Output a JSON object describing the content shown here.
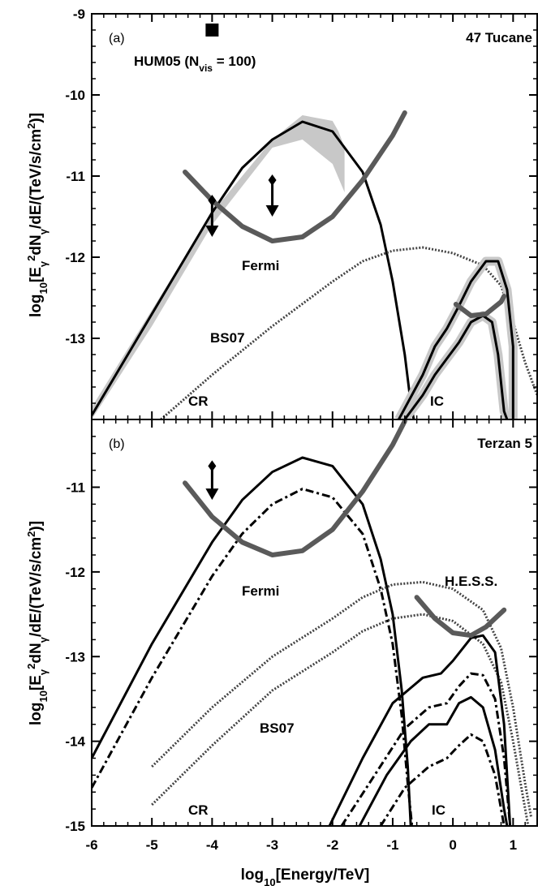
{
  "chart_data": {
    "type": "line",
    "shared_x_axis": {
      "label": "log10[Energy/TeV]",
      "ticks": [
        "-6",
        "-5",
        "-4",
        "-3",
        "-2",
        "-1",
        "0",
        "1"
      ],
      "range": [
        -6,
        1.4
      ]
    },
    "y_axis_label": "log10[Eγ²dNγ/dE/(TeV/s/cm²)]",
    "panels": [
      {
        "panel_label": "(a)",
        "title": "47 Tucane",
        "ylim": [
          -14,
          -9
        ],
        "yticks": [
          "-9",
          "-10",
          "-11",
          "-12",
          "-13"
        ],
        "annotations": {
          "hum05": "HUM05 (N",
          "hum05_sub": "vis",
          "hum05_tail": " = 100)",
          "fermi": "Fermi",
          "bs07": "BS07",
          "cr": "CR",
          "ic": "IC"
        },
        "hum05_point": {
          "x": -4.0,
          "y": -9.2
        },
        "series": [
          {
            "style": "band",
            "color": "#c8c8c8",
            "points": [
              [
                -6,
                -13.85
              ],
              [
                -5,
                -12.65
              ],
              [
                -4,
                -11.45
              ],
              [
                -3,
                -10.55
              ],
              [
                -2.5,
                -10.25
              ],
              [
                -2,
                -10.32
              ],
              [
                -1.9,
                -10.45
              ],
              [
                -1.8,
                -10.65
              ],
              [
                -1.8,
                -11.2
              ],
              [
                -2,
                -10.85
              ],
              [
                -2.5,
                -10.55
              ],
              [
                -3,
                -10.65
              ],
              [
                -4,
                -11.6
              ],
              [
                -5,
                -12.85
              ],
              [
                -6,
                -14.0
              ]
            ]
          },
          {
            "style": "solid",
            "points": [
              [
                -6,
                -13.95
              ],
              [
                -5,
                -12.7
              ],
              [
                -4,
                -11.45
              ],
              [
                -3.5,
                -10.9
              ],
              [
                -3,
                -10.55
              ],
              [
                -2.5,
                -10.33
              ],
              [
                -2,
                -10.45
              ],
              [
                -1.5,
                -10.95
              ],
              [
                -1.2,
                -11.6
              ],
              [
                -1,
                -12.3
              ],
              [
                -0.8,
                -13.2
              ],
              [
                -0.7,
                -13.8
              ],
              [
                -0.65,
                -14.0
              ]
            ]
          },
          {
            "style": "dotted",
            "points": [
              [
                -4.85,
                -14.0
              ],
              [
                -4,
                -13.45
              ],
              [
                -3,
                -12.85
              ],
              [
                -2,
                -12.3
              ],
              [
                -1.5,
                -12.05
              ],
              [
                -1,
                -11.92
              ],
              [
                -0.5,
                -11.88
              ],
              [
                0,
                -11.95
              ],
              [
                0.5,
                -12.1
              ],
              [
                0.8,
                -12.35
              ],
              [
                1.0,
                -12.8
              ],
              [
                1.2,
                -13.3
              ],
              [
                1.4,
                -13.7
              ]
            ]
          },
          {
            "style": "solid",
            "points": [
              [
                -0.8,
                -14.0
              ],
              [
                -0.5,
                -13.7
              ],
              [
                -0.3,
                -13.45
              ],
              [
                -0.1,
                -13.25
              ],
              [
                0.1,
                -13.05
              ],
              [
                0.3,
                -12.8
              ],
              [
                0.5,
                -12.72
              ],
              [
                0.65,
                -12.8
              ],
              [
                0.75,
                -13.2
              ],
              [
                0.85,
                -13.9
              ],
              [
                0.9,
                -14.0
              ]
            ]
          },
          {
            "style": "solid",
            "points": [
              [
                -0.9,
                -14.0
              ],
              [
                -0.5,
                -13.45
              ],
              [
                -0.3,
                -13.1
              ],
              [
                -0.1,
                -12.88
              ],
              [
                0.1,
                -12.6
              ],
              [
                0.3,
                -12.3
              ],
              [
                0.55,
                -12.05
              ],
              [
                0.75,
                -12.05
              ],
              [
                0.9,
                -12.4
              ],
              [
                1.0,
                -13.1
              ],
              [
                1.0,
                -14.0
              ]
            ]
          },
          {
            "style": "thick-gray",
            "points": [
              [
                -4.45,
                -10.95
              ],
              [
                -4,
                -11.3
              ],
              [
                -3.5,
                -11.62
              ],
              [
                -3,
                -11.8
              ],
              [
                -2.5,
                -11.75
              ],
              [
                -2,
                -11.5
              ],
              [
                -1.5,
                -11.05
              ],
              [
                -1,
                -10.5
              ],
              [
                -0.8,
                -10.22
              ]
            ]
          },
          {
            "style": "thick-gray",
            "points": [
              [
                0.05,
                -12.58
              ],
              [
                0.3,
                -12.72
              ],
              [
                0.55,
                -12.7
              ],
              [
                0.8,
                -12.55
              ],
              [
                0.85,
                -12.48
              ]
            ]
          }
        ],
        "upper_limits": [
          {
            "x": -4.0,
            "y_top": -11.3,
            "y_bottom": -11.75
          },
          {
            "x": -3.0,
            "y_top": -11.05,
            "y_bottom": -11.5
          }
        ]
      },
      {
        "panel_label": "(b)",
        "title": "Terzan 5",
        "ylim": [
          -15,
          -10.2
        ],
        "yticks": [
          "-11",
          "-12",
          "-13",
          "-14",
          "-15"
        ],
        "annotations": {
          "fermi": "Fermi",
          "hess": "H.E.S.S.",
          "bs07": "BS07",
          "cr": "CR",
          "ic": "IC"
        },
        "series": [
          {
            "style": "solid",
            "points": [
              [
                -6,
                -14.2
              ],
              [
                -5,
                -12.85
              ],
              [
                -4,
                -11.65
              ],
              [
                -3.5,
                -11.15
              ],
              [
                -3,
                -10.82
              ],
              [
                -2.5,
                -10.65
              ],
              [
                -2,
                -10.75
              ],
              [
                -1.5,
                -11.2
              ],
              [
                -1.2,
                -11.85
              ],
              [
                -1,
                -12.5
              ],
              [
                -0.85,
                -13.4
              ],
              [
                -0.75,
                -14.3
              ],
              [
                -0.7,
                -15.0
              ]
            ]
          },
          {
            "style": "dashdot",
            "points": [
              [
                -6,
                -14.55
              ],
              [
                -5,
                -13.25
              ],
              [
                -4,
                -12.05
              ],
              [
                -3.5,
                -11.55
              ],
              [
                -3,
                -11.2
              ],
              [
                -2.5,
                -11.02
              ],
              [
                -2,
                -11.12
              ],
              [
                -1.5,
                -11.55
              ],
              [
                -1.2,
                -12.2
              ],
              [
                -1,
                -12.85
              ],
              [
                -0.85,
                -13.7
              ],
              [
                -0.75,
                -14.5
              ],
              [
                -0.68,
                -15.0
              ]
            ]
          },
          {
            "style": "dotted",
            "points": [
              [
                -5,
                -14.3
              ],
              [
                -4,
                -13.6
              ],
              [
                -3,
                -13.0
              ],
              [
                -2,
                -12.55
              ],
              [
                -1.5,
                -12.3
              ],
              [
                -1,
                -12.15
              ],
              [
                -0.5,
                -12.12
              ],
              [
                0,
                -12.2
              ],
              [
                0.5,
                -12.45
              ],
              [
                0.8,
                -12.9
              ],
              [
                1.0,
                -13.6
              ],
              [
                1.2,
                -14.5
              ],
              [
                1.3,
                -14.9
              ]
            ]
          },
          {
            "style": "dotted",
            "points": [
              [
                -5,
                -14.75
              ],
              [
                -4,
                -14.05
              ],
              [
                -3,
                -13.4
              ],
              [
                -2,
                -12.95
              ],
              [
                -1.5,
                -12.7
              ],
              [
                -1,
                -12.55
              ],
              [
                -0.5,
                -12.5
              ],
              [
                0,
                -12.58
              ],
              [
                0.5,
                -12.85
              ],
              [
                0.8,
                -13.3
              ],
              [
                1.0,
                -14.0
              ],
              [
                1.2,
                -14.8
              ],
              [
                1.25,
                -15.0
              ]
            ]
          },
          {
            "style": "solid",
            "points": [
              [
                -2.05,
                -15.0
              ],
              [
                -1.5,
                -14.2
              ],
              [
                -1,
                -13.55
              ],
              [
                -0.5,
                -13.25
              ],
              [
                -0.2,
                -13.2
              ],
              [
                0,
                -13.05
              ],
              [
                0.3,
                -12.78
              ],
              [
                0.5,
                -12.75
              ],
              [
                0.7,
                -12.95
              ],
              [
                0.85,
                -13.8
              ],
              [
                0.95,
                -15.0
              ]
            ]
          },
          {
            "style": "dashdot",
            "points": [
              [
                -1.85,
                -15.0
              ],
              [
                -1.3,
                -14.4
              ],
              [
                -0.8,
                -13.85
              ],
              [
                -0.4,
                -13.6
              ],
              [
                -0.1,
                -13.55
              ],
              [
                0.1,
                -13.35
              ],
              [
                0.3,
                -13.2
              ],
              [
                0.5,
                -13.22
              ],
              [
                0.7,
                -13.5
              ],
              [
                0.85,
                -14.2
              ],
              [
                0.95,
                -15.0
              ]
            ]
          },
          {
            "style": "solid",
            "points": [
              [
                -1.55,
                -15.0
              ],
              [
                -1.1,
                -14.4
              ],
              [
                -0.7,
                -14.0
              ],
              [
                -0.4,
                -13.8
              ],
              [
                -0.1,
                -13.8
              ],
              [
                0.1,
                -13.55
              ],
              [
                0.3,
                -13.48
              ],
              [
                0.5,
                -13.6
              ],
              [
                0.7,
                -14.1
              ],
              [
                0.85,
                -14.8
              ],
              [
                0.9,
                -15.0
              ]
            ]
          },
          {
            "style": "dashdot",
            "points": [
              [
                -1.2,
                -15.0
              ],
              [
                -0.8,
                -14.55
              ],
              [
                -0.4,
                -14.3
              ],
              [
                -0.1,
                -14.2
              ],
              [
                0.1,
                -14.05
              ],
              [
                0.3,
                -13.92
              ],
              [
                0.5,
                -14.0
              ],
              [
                0.7,
                -14.4
              ],
              [
                0.85,
                -15.0
              ]
            ]
          },
          {
            "style": "thick-gray",
            "points": [
              [
                -4.45,
                -10.95
              ],
              [
                -4,
                -11.35
              ],
              [
                -3.5,
                -11.65
              ],
              [
                -3,
                -11.8
              ],
              [
                -2.5,
                -11.75
              ],
              [
                -2,
                -11.5
              ],
              [
                -1.5,
                -11.05
              ],
              [
                -1,
                -10.5
              ],
              [
                -0.8,
                -10.22
              ]
            ]
          },
          {
            "style": "thick-gray",
            "points": [
              [
                -0.6,
                -12.3
              ],
              [
                -0.3,
                -12.55
              ],
              [
                0,
                -12.72
              ],
              [
                0.3,
                -12.75
              ],
              [
                0.55,
                -12.65
              ],
              [
                0.85,
                -12.45
              ]
            ]
          }
        ],
        "upper_limits": [
          {
            "x": -4.0,
            "y_top": -10.75,
            "y_bottom": -11.15
          }
        ]
      }
    ]
  }
}
